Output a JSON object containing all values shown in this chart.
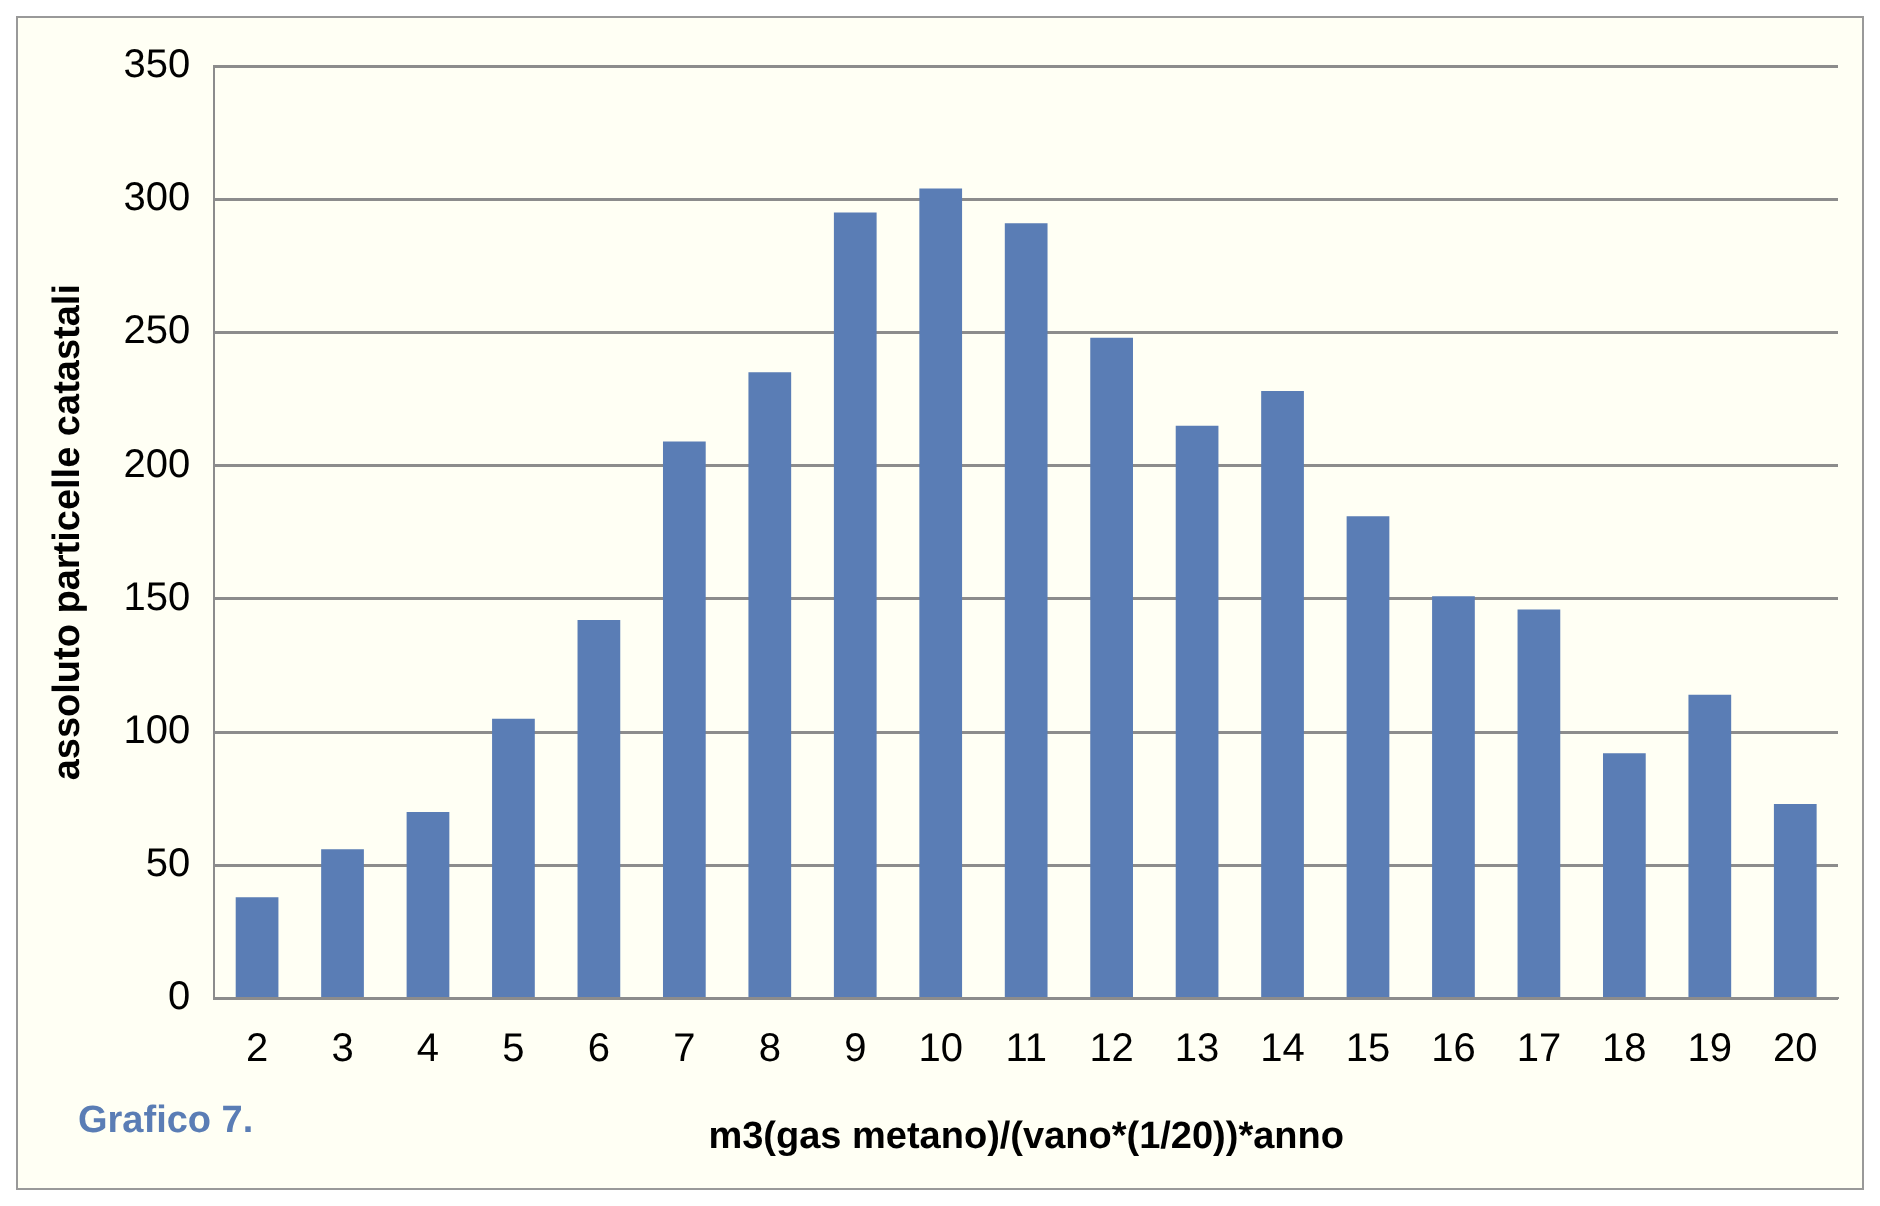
{
  "chart_data": {
    "type": "bar",
    "xlabel": "m3(gas metano)/(vano*(1/20))*anno",
    "ylabel": "assoluto particelle catastali",
    "annotations": [
      "Grafico 7."
    ],
    "categories": [
      "2",
      "3",
      "4",
      "5",
      "6",
      "7",
      "8",
      "9",
      "10",
      "11",
      "12",
      "13",
      "14",
      "15",
      "16",
      "17",
      "18",
      "19",
      "20"
    ],
    "values": [
      38,
      56,
      70,
      105,
      142,
      209,
      235,
      295,
      304,
      291,
      248,
      215,
      228,
      181,
      151,
      146,
      92,
      114,
      73
    ],
    "color": "#5a7db5",
    "ylim": [
      0,
      350
    ],
    "yticks": [
      0,
      50,
      100,
      150,
      200,
      250,
      300,
      350
    ],
    "grid": "y",
    "legend": false
  }
}
